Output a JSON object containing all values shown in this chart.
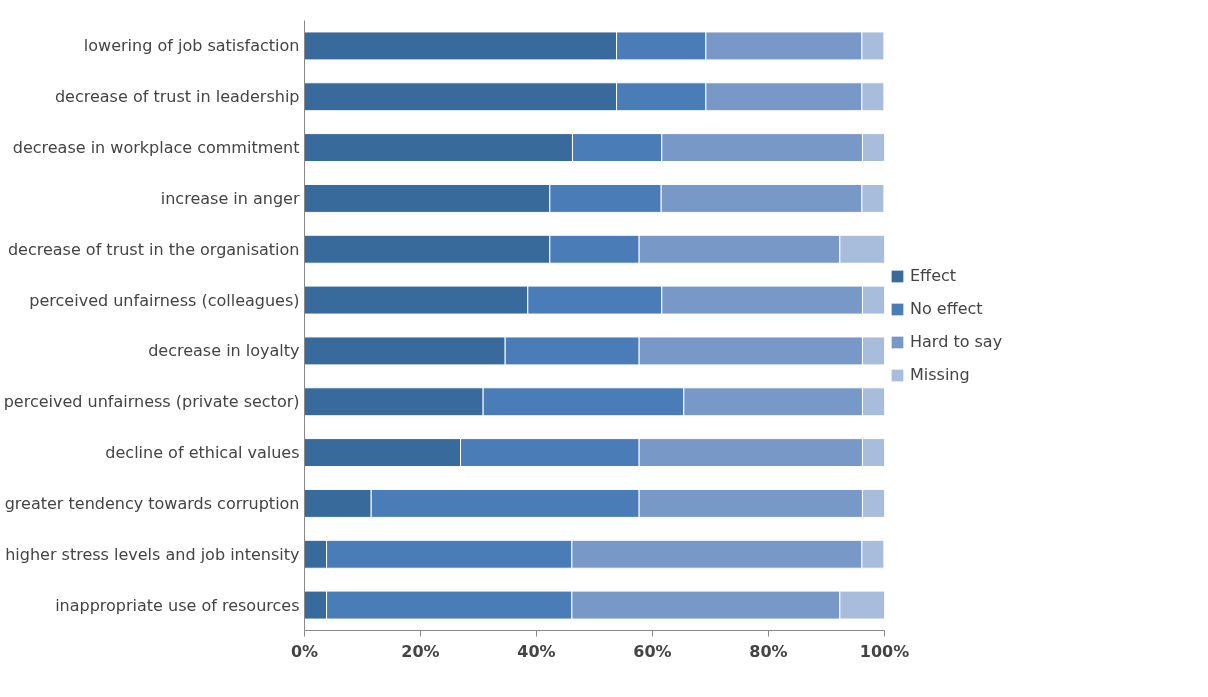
{
  "chart_data": {
    "type": "bar",
    "orientation": "horizontal",
    "stacked": true,
    "categories": [
      "lowering of job satisfaction",
      "decrease of trust in leadership",
      "decrease in workplace commitment",
      "increase in anger",
      "decrease of trust in the organisation",
      "perceived unfairness (colleagues)",
      "decrease in loyalty",
      "perceived unfairness (private sector)",
      "decline of ethical values",
      "greater tendency towards corruption",
      "higher stress levels and job intensity",
      "inappropriate use of resources"
    ],
    "series": [
      {
        "name": "Effect",
        "color": "#386a9b",
        "values": [
          53.8,
          53.8,
          46.2,
          42.3,
          42.3,
          38.5,
          34.6,
          30.8,
          26.9,
          11.5,
          3.8,
          3.8
        ]
      },
      {
        "name": "No effect",
        "color": "#4a7db8",
        "values": [
          15.4,
          15.4,
          15.4,
          19.2,
          15.4,
          23.1,
          23.1,
          34.6,
          30.8,
          46.2,
          42.3,
          42.3
        ]
      },
      {
        "name": "Hard to say",
        "color": "#7899c8",
        "values": [
          26.9,
          26.9,
          34.6,
          34.6,
          34.6,
          34.6,
          38.5,
          30.8,
          38.5,
          38.5,
          50.0,
          46.2
        ]
      },
      {
        "name": "Missing",
        "color": "#a8bcdc",
        "values": [
          3.8,
          3.8,
          3.8,
          3.8,
          7.7,
          3.8,
          3.8,
          3.8,
          3.8,
          3.8,
          3.8,
          7.7
        ]
      }
    ],
    "xlim": [
      0,
      100
    ],
    "xticks": [
      {
        "value": 0,
        "label": "0%"
      },
      {
        "value": 20,
        "label": "20%"
      },
      {
        "value": 40,
        "label": "40%"
      },
      {
        "value": 60,
        "label": "60%"
      },
      {
        "value": 80,
        "label": "80%"
      },
      {
        "value": 100,
        "label": "100%"
      }
    ],
    "grid": false,
    "legend": "right"
  }
}
